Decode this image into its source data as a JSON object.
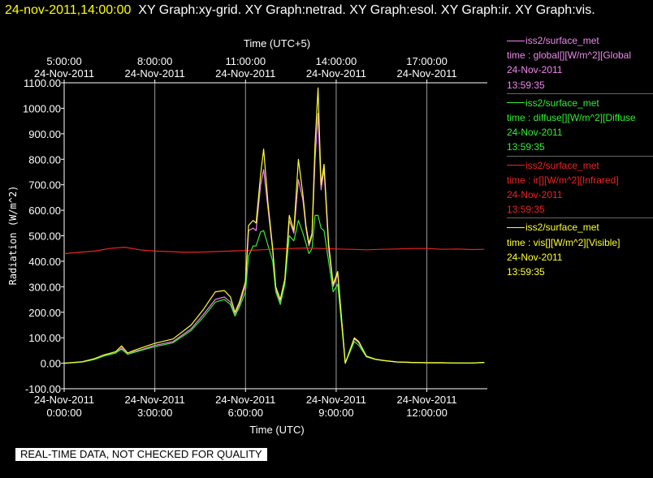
{
  "header": {
    "timestamp": "24-nov-2011,14:00:00",
    "graphs": "XY Graph:xy-grid.  XY Graph:netrad.  XY Graph:esol.  XY Graph:ir.  XY Graph:vis."
  },
  "notice": "REAL-TIME DATA, NOT CHECKED FOR QUALITY",
  "legend": [
    {
      "source": "iss2/surface_met",
      "desc": "time : global[][W/m^2][Global",
      "date": "24-Nov-2011",
      "time": "13:59:35",
      "color": "#ee88ee"
    },
    {
      "source": "iss2/surface_met",
      "desc": "time : diffuse[][W/m^2][Diffuse",
      "date": "24-Nov-2011",
      "time": "13:59:35",
      "color": "#33ee33"
    },
    {
      "source": "iss2/surface_met",
      "desc": "time : ir[][W/m^2][Infrared]",
      "date": "24-Nov-2011",
      "time": "13:59:35",
      "color": "#ee2222"
    },
    {
      "source": "iss2/surface_met",
      "desc": "time : vis[][W/m^2][Visible]",
      "date": "24-Nov-2011",
      "time": "13:59:35",
      "color": "#ffff33"
    }
  ],
  "chart_data": {
    "type": "line",
    "top_axis_label": "Time (UTC+5)",
    "xlabel": "Time (UTC)",
    "ylabel": "Radiation (W/m^2)",
    "ylim": [
      -100,
      1100
    ],
    "yticks": [
      "1100.00",
      "1000.00",
      "900.00",
      "800.00",
      "700.00",
      "600.00",
      "500.00",
      "400.00",
      "300.00",
      "200.00",
      "100.00",
      "0.00",
      "-100.00"
    ],
    "bottom_ticks": [
      {
        "h": 0,
        "date": "24-Nov-2011",
        "time": "0:00:00"
      },
      {
        "h": 3,
        "date": "24-Nov-2011",
        "time": "3:00:00"
      },
      {
        "h": 6,
        "date": "24-Nov-2011",
        "time": "6:00:00"
      },
      {
        "h": 9,
        "date": "24-Nov-2011",
        "time": "9:00:00"
      },
      {
        "h": 12,
        "date": "24-Nov-2011",
        "time": "12:00:00"
      }
    ],
    "top_ticks": [
      {
        "h": 0,
        "time": "5:00:00",
        "date": "24-Nov-2011"
      },
      {
        "h": 3,
        "time": "8:00:00",
        "date": "24-Nov-2011"
      },
      {
        "h": 6,
        "time": "11:00:00",
        "date": "24-Nov-2011"
      },
      {
        "h": 9,
        "time": "14:00:00",
        "date": "24-Nov-2011"
      },
      {
        "h": 12,
        "time": "17:00:00",
        "date": "24-Nov-2011"
      }
    ],
    "grid": "vertical",
    "series": [
      {
        "name": "global",
        "color": "#ee88ee",
        "x": [
          0,
          0.6,
          1,
          1.3,
          1.7,
          1.9,
          2.1,
          2.3,
          2.6,
          3,
          3.6,
          4.2,
          4.6,
          5,
          5.3,
          5.5,
          5.65,
          5.8,
          6,
          6.1,
          6.25,
          6.35,
          6.5,
          6.6,
          6.75,
          6.9,
          7,
          7.15,
          7.3,
          7.45,
          7.6,
          7.75,
          7.9,
          8,
          8.1,
          8.2,
          8.3,
          8.4,
          8.5,
          8.6,
          8.75,
          8.9,
          9.05,
          9.3,
          9.6,
          9.75,
          10,
          10.3,
          10.6,
          11,
          11.5,
          12,
          12.5,
          13,
          13.5,
          13.9
        ],
        "y": [
          0,
          5,
          15,
          28,
          40,
          60,
          35,
          45,
          55,
          70,
          85,
          135,
          190,
          250,
          260,
          240,
          190,
          230,
          305,
          520,
          530,
          520,
          700,
          760,
          600,
          440,
          290,
          240,
          320,
          560,
          510,
          720,
          640,
          530,
          460,
          500,
          800,
          980,
          680,
          760,
          450,
          300,
          350,
          0,
          95,
          80,
          25,
          15,
          10,
          5,
          3,
          2,
          2,
          1,
          1,
          3
        ]
      },
      {
        "name": "diffuse",
        "color": "#33ee33",
        "x": [
          0,
          0.6,
          1,
          1.3,
          1.7,
          1.9,
          2.1,
          2.3,
          2.6,
          3,
          3.6,
          4.2,
          4.6,
          5,
          5.3,
          5.5,
          5.65,
          5.8,
          6,
          6.1,
          6.25,
          6.35,
          6.5,
          6.6,
          6.75,
          6.9,
          7,
          7.15,
          7.3,
          7.45,
          7.6,
          7.75,
          7.9,
          8,
          8.1,
          8.2,
          8.3,
          8.4,
          8.5,
          8.6,
          8.75,
          8.9,
          9.05,
          9.3,
          9.6,
          9.75,
          10,
          10.3,
          10.6,
          11,
          11.5,
          12,
          12.5,
          13,
          13.5,
          13.9
        ],
        "y": [
          0,
          5,
          15,
          28,
          40,
          55,
          35,
          42,
          52,
          65,
          80,
          128,
          180,
          240,
          250,
          230,
          185,
          220,
          280,
          420,
          460,
          460,
          515,
          520,
          460,
          400,
          280,
          230,
          310,
          500,
          480,
          560,
          510,
          470,
          430,
          450,
          580,
          580,
          530,
          520,
          400,
          280,
          310,
          0,
          85,
          70,
          25,
          15,
          10,
          5,
          3,
          2,
          2,
          1,
          1,
          3
        ]
      },
      {
        "name": "ir",
        "color": "#ee2222",
        "x": [
          0,
          0.5,
          1,
          1.5,
          2,
          2.5,
          3,
          3.5,
          4,
          4.5,
          5,
          5.5,
          6,
          6.5,
          7,
          7.5,
          8,
          8.5,
          9,
          9.5,
          10,
          10.5,
          11,
          11.5,
          12,
          12.5,
          13,
          13.5,
          13.9
        ],
        "y": [
          430,
          435,
          440,
          450,
          455,
          445,
          440,
          438,
          435,
          436,
          438,
          440,
          442,
          445,
          448,
          450,
          452,
          450,
          448,
          447,
          445,
          447,
          448,
          450,
          450,
          447,
          448,
          446,
          447
        ]
      },
      {
        "name": "vis",
        "color": "#ffff33",
        "x": [
          0,
          0.6,
          1,
          1.3,
          1.7,
          1.9,
          2.1,
          2.3,
          2.6,
          3,
          3.6,
          4.2,
          4.6,
          5,
          5.3,
          5.5,
          5.65,
          5.8,
          6,
          6.1,
          6.25,
          6.35,
          6.5,
          6.6,
          6.75,
          6.9,
          7,
          7.15,
          7.3,
          7.45,
          7.6,
          7.75,
          7.9,
          8,
          8.1,
          8.2,
          8.3,
          8.4,
          8.5,
          8.6,
          8.75,
          8.9,
          9.05,
          9.3,
          9.6,
          9.75,
          10,
          10.3,
          10.6,
          11,
          11.5,
          12,
          12.5,
          13,
          13.5,
          13.9
        ],
        "y": [
          0,
          6,
          18,
          32,
          45,
          68,
          40,
          50,
          62,
          78,
          95,
          150,
          210,
          280,
          285,
          260,
          200,
          240,
          320,
          540,
          560,
          550,
          740,
          840,
          620,
          450,
          300,
          250,
          330,
          580,
          520,
          800,
          660,
          540,
          470,
          510,
          860,
          1080,
          700,
          780,
          470,
          310,
          360,
          0,
          100,
          85,
          28,
          16,
          10,
          5,
          3,
          2,
          2,
          1,
          1,
          3
        ]
      }
    ]
  }
}
